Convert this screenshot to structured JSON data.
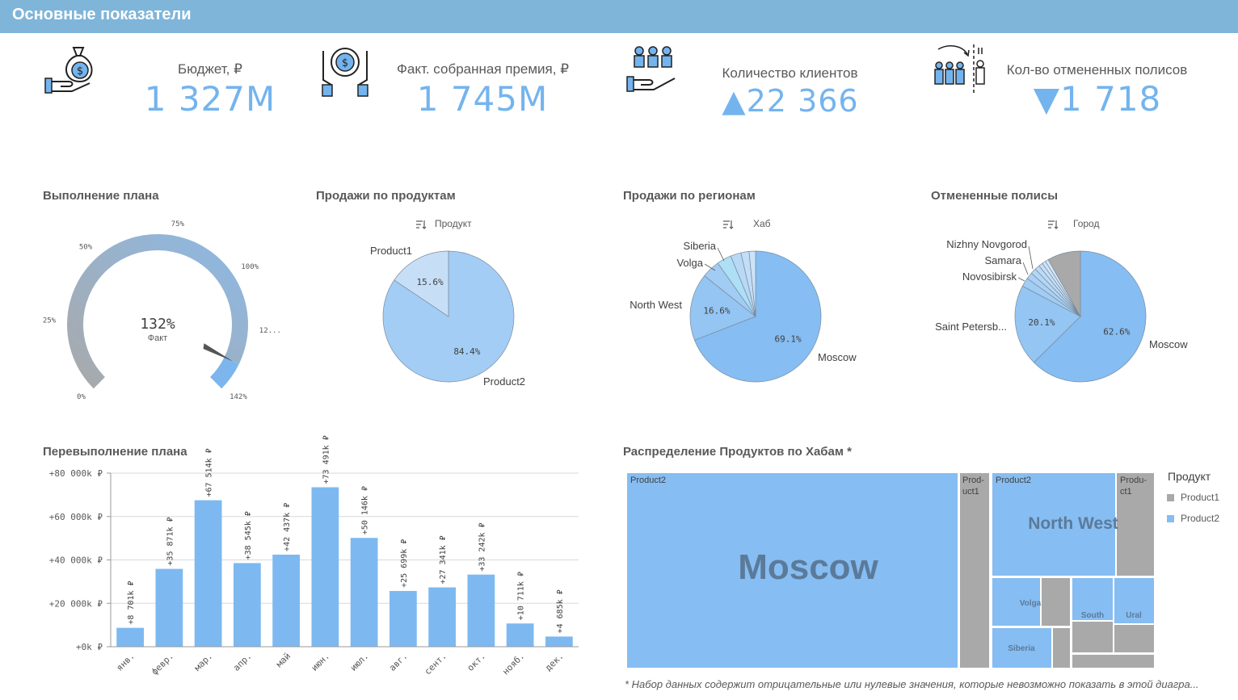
{
  "header": {
    "title": "Основные показатели"
  },
  "kpis": [
    {
      "label": "Бюджет, ₽",
      "value": "1 327M",
      "icon": "money-bag-hand-icon"
    },
    {
      "label": "Факт. собранная премия, ₽",
      "value": "1 745M",
      "icon": "coin-hands-icon"
    },
    {
      "label": "Количество клиентов",
      "value": "▲22 366",
      "icon": "clients-hand-icon"
    },
    {
      "label": "Кол-во отмененных полисов",
      "value": "▼1 718",
      "icon": "people-cancel-icon"
    }
  ],
  "gauge": {
    "title": "Выполнение плана",
    "value_text": "132%",
    "value_label": "Факт",
    "value": 1.32,
    "max": 1.42,
    "ticks": [
      "0%",
      "25%",
      "50%",
      "75%",
      "100%",
      "12...",
      "142%"
    ],
    "colors": {
      "track": "#a9a9a9",
      "fill": "#7db6ec"
    }
  },
  "pie_products": {
    "title": "Продажи по продуктам",
    "dimension_label": "Продукт",
    "chart_data": {
      "type": "pie",
      "slices": [
        {
          "label": "Product1",
          "value": 15.6,
          "pct_text": "15.6%",
          "color": "#c6def6"
        },
        {
          "label": "Product2",
          "value": 84.4,
          "pct_text": "84.4%",
          "color": "#a3cdf5"
        }
      ]
    }
  },
  "pie_regions": {
    "title": "Продажи по регионам",
    "dimension_label": "Хаб",
    "chart_data": {
      "type": "pie",
      "slices": [
        {
          "label": "Moscow",
          "value": 69.1,
          "pct_text": "69.1%",
          "color": "#86bdf2"
        },
        {
          "label": "North West",
          "value": 16.6,
          "pct_text": "16.6%",
          "color": "#94c5f3"
        },
        {
          "label": "Volga",
          "value": 4.5,
          "pct_text": "",
          "color": "#a1ccf4"
        },
        {
          "label": "Siberia",
          "value": 3.6,
          "pct_text": "",
          "color": "#addff5"
        },
        {
          "label": "",
          "value": 2.6,
          "pct_text": "",
          "color": "#b8d8f6"
        },
        {
          "label": "",
          "value": 2.0,
          "pct_text": "",
          "color": "#c2ddf7"
        },
        {
          "label": "",
          "value": 1.6,
          "pct_text": "",
          "color": "#cbe2f8"
        }
      ]
    }
  },
  "pie_cancel": {
    "title": "Отмененные полисы",
    "dimension_label": "Город",
    "chart_data": {
      "type": "pie",
      "slices": [
        {
          "label": "Moscow",
          "value": 62.6,
          "pct_text": "62.6%",
          "color": "#86bdf2"
        },
        {
          "label": "Saint Petersb...",
          "value": 20.1,
          "pct_text": "20.1%",
          "color": "#94c5f3"
        },
        {
          "label": "Novosibirsk",
          "value": 2.2,
          "pct_text": "",
          "color": "#a1ccf4"
        },
        {
          "label": "Samara",
          "value": 1.6,
          "pct_text": "",
          "color": "#aad1f5"
        },
        {
          "label": "Nizhny Novgorod",
          "value": 1.4,
          "pct_text": "",
          "color": "#b3d6f5"
        },
        {
          "label": "",
          "value": 1.2,
          "pct_text": "",
          "color": "#bcdaf6"
        },
        {
          "label": "",
          "value": 1.0,
          "pct_text": "",
          "color": "#c5dff7"
        },
        {
          "label": "",
          "value": 0.9,
          "pct_text": "",
          "color": "#cde3f8"
        },
        {
          "label": "",
          "value": 0.8,
          "pct_text": "",
          "color": "#d5e8f9"
        },
        {
          "label": "",
          "value": 8.2,
          "pct_text": "",
          "color": "#a9a9a9"
        }
      ]
    }
  },
  "bar_chart": {
    "title": "Перевыполнение плана",
    "chart_data": {
      "type": "bar",
      "categories": [
        "янв.",
        "февр.",
        "мар.",
        "апр.",
        "май",
        "июн.",
        "июл.",
        "авг.",
        "сент.",
        "окт.",
        "нояб.",
        "дек."
      ],
      "values": [
        8701,
        35871,
        67514,
        38545,
        42437,
        73491,
        50146,
        25699,
        27341,
        33242,
        10711,
        4685
      ],
      "value_labels": [
        "+8 701k ₽",
        "+35 871k ₽",
        "+67 514k ₽",
        "+38 545k ₽",
        "+42 437k ₽",
        "+73 491k ₽",
        "+50 146k ₽",
        "+25 699k ₽",
        "+27 341k ₽",
        "+33 242k ₽",
        "+10 711k ₽",
        "+4 685k ₽"
      ],
      "y_ticks": [
        "+0k ₽",
        "+20 000k ₽",
        "+40 000k ₽",
        "+60 000k ₽",
        "+80 000k ₽"
      ],
      "ylim": [
        0,
        80000
      ],
      "grid": true,
      "color": "#7db9f0"
    }
  },
  "treemap": {
    "title": "Распределение Продуктов по Хабам *",
    "legend_title": "Продукт",
    "legend_items": [
      {
        "label": "Product1",
        "color": "#a9a9a9"
      },
      {
        "label": "Product2",
        "color": "#86bdf2"
      }
    ],
    "hubs": [
      {
        "name": "Moscow",
        "product2_label": "Product2",
        "product1_label": "Prod-\nuct1"
      },
      {
        "name": "North West",
        "product2_label": "Product2",
        "product1_label": "Produ-\nct1"
      },
      {
        "name": "Volga"
      },
      {
        "name": "Siberia"
      },
      {
        "name": "South"
      },
      {
        "name": "Ural"
      }
    ],
    "footnote": "* Набор данных содержит отрицательные или нулевые значения, которые невозможно показать в этой диагра..."
  }
}
